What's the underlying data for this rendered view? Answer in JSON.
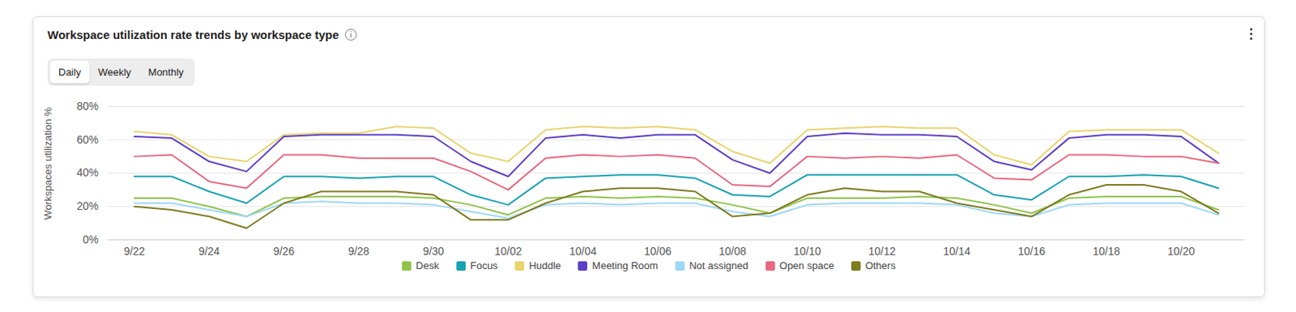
{
  "chart_data": {
    "type": "line",
    "title": "Workspace utilization rate trends by workspace type",
    "y_label": "Workspaces utilization %",
    "categories": [
      "9/22",
      null,
      "9/24",
      null,
      "9/26",
      null,
      "9/28",
      null,
      "9/30",
      null,
      "10/02",
      null,
      "10/04",
      null,
      "10/06",
      null,
      "10/08",
      null,
      "10/10",
      null,
      "10/12",
      null,
      "10/14",
      null,
      "10/16",
      null,
      "10/18",
      null,
      "10/20",
      null
    ],
    "series": [
      {
        "name": "Desk",
        "color": "#8fc44a",
        "values": [
          25,
          25,
          20,
          14,
          25,
          26,
          26,
          26,
          25,
          21,
          15,
          25,
          26,
          25,
          26,
          25,
          21,
          16,
          25,
          25,
          25,
          26,
          25,
          21,
          16,
          25,
          26,
          26,
          26,
          18
        ]
      },
      {
        "name": "Focus",
        "color": "#17a2b2",
        "values": [
          38,
          38,
          29,
          22,
          38,
          38,
          37,
          38,
          38,
          27,
          21,
          37,
          38,
          39,
          39,
          37,
          27,
          26,
          39,
          39,
          39,
          39,
          39,
          27,
          24,
          38,
          38,
          39,
          38,
          31
        ]
      },
      {
        "name": "Huddle",
        "color": "#e9d46e",
        "values": [
          65,
          63,
          50,
          47,
          63,
          64,
          64,
          68,
          67,
          52,
          47,
          66,
          68,
          67,
          68,
          66,
          53,
          46,
          66,
          67,
          68,
          67,
          67,
          51,
          45,
          65,
          66,
          66,
          66,
          52
        ]
      },
      {
        "name": "Meeting Room",
        "color": "#5d3fc6",
        "values": [
          62,
          61,
          47,
          41,
          62,
          63,
          63,
          63,
          62,
          47,
          38,
          61,
          63,
          61,
          63,
          63,
          48,
          40,
          62,
          64,
          63,
          63,
          62,
          47,
          42,
          61,
          63,
          63,
          62,
          46
        ]
      },
      {
        "name": "Not assigned",
        "color": "#9dd8f6",
        "values": [
          22,
          22,
          18,
          14,
          22,
          23,
          22,
          22,
          21,
          17,
          13,
          21,
          22,
          21,
          22,
          22,
          17,
          14,
          21,
          22,
          22,
          22,
          21,
          16,
          14,
          21,
          22,
          22,
          22,
          15
        ]
      },
      {
        "name": "Open space",
        "color": "#e8687f",
        "values": [
          50,
          51,
          35,
          31,
          51,
          51,
          49,
          49,
          49,
          41,
          30,
          49,
          51,
          50,
          51,
          49,
          33,
          32,
          50,
          49,
          50,
          49,
          51,
          37,
          36,
          51,
          51,
          50,
          50,
          46
        ]
      },
      {
        "name": "Others",
        "color": "#7e7a1e",
        "values": [
          20,
          18,
          14,
          7,
          22,
          29,
          29,
          29,
          27,
          12,
          12,
          22,
          29,
          31,
          31,
          29,
          14,
          16,
          27,
          31,
          29,
          29,
          22,
          18,
          14,
          27,
          33,
          33,
          29,
          16
        ]
      }
    ],
    "ylim": [
      0,
      80
    ],
    "yticks": [
      {
        "value": 0,
        "label": "0%"
      },
      {
        "value": 20,
        "label": "20%"
      },
      {
        "value": 40,
        "label": "40%"
      },
      {
        "value": 60,
        "label": "60%"
      },
      {
        "value": 80,
        "label": "80%"
      }
    ],
    "grid": true,
    "legend": "bottom"
  },
  "controls": {
    "options": [
      "Daily",
      "Weekly",
      "Monthly"
    ],
    "selected": "Daily"
  }
}
